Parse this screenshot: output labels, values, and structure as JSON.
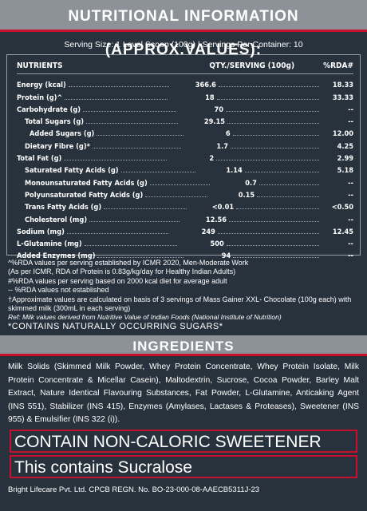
{
  "header": {
    "title": "NUTRITIONAL INFORMATION (APPROX.VALUES):",
    "serving": "Serving Size: 1 Level Scoop (100g)  |  Servings Per Container: 10"
  },
  "table": {
    "columns": [
      "NUTRIENTS",
      "QTY./SERVING (100g)",
      "%RDA#"
    ],
    "rows": [
      {
        "name": "Energy (kcal)",
        "qty": "366.6",
        "rda": "18.33",
        "indent": 0
      },
      {
        "name": "Protein (g)^",
        "qty": "18",
        "rda": "33.33",
        "indent": 0
      },
      {
        "name": "Carbohydrate (g)",
        "qty": "70",
        "rda": "--",
        "indent": 0
      },
      {
        "name": "Total Sugars (g)",
        "qty": "29.15",
        "rda": "--",
        "indent": 1
      },
      {
        "name": "Added Sugars (g)",
        "qty": "6",
        "rda": "12.00",
        "indent": 2
      },
      {
        "name": "Dietary Fibre (g)*",
        "qty": "1.7",
        "rda": "4.25",
        "indent": 1
      },
      {
        "name": "Total Fat (g)",
        "qty": "2",
        "rda": "2.99",
        "indent": 0
      },
      {
        "name": "Saturated Fatty Acids (g)",
        "qty": "1.14",
        "rda": "5.18",
        "indent": 1
      },
      {
        "name": "Monounsaturated Fatty Acids (g)",
        "qty": "0.7",
        "rda": "--",
        "indent": 1
      },
      {
        "name": "Polyunsaturated Fatty Acids (g)",
        "qty": "0.15",
        "rda": "--",
        "indent": 1
      },
      {
        "name": "Trans Fatty Acids (g)",
        "qty": "<0.01",
        "rda": "<0.50",
        "indent": 1
      },
      {
        "name": "Cholesterol (mg)",
        "qty": "12.56",
        "rda": "--",
        "indent": 1
      },
      {
        "name": "Sodium (mg)",
        "qty": "249",
        "rda": "12.45",
        "indent": 0
      },
      {
        "name": "L-Glutamine (mg)",
        "qty": "500",
        "rda": "--",
        "indent": 0
      },
      {
        "name": "Added Enzymes (mg)",
        "qty": "94",
        "rda": "--",
        "indent": 0
      }
    ]
  },
  "footnotes": [
    "^%RDA values per serving established by ICMR 2020, Men-Moderate Work",
    "(As per ICMR, RDA of Protein is 0.83g/kg/day for Healthy Indian Adults)",
    "#%RDA values per serving based on 2000 kcal diet for average adult",
    "-- %RDA values not established",
    "†Approximate values are calculated on basis of 3 servings of Mass Gainer XXL- Chocolate (100g each) with skimmed milk (300mL in each serving)"
  ],
  "reference": "Ref: Milk values derived from Nutritive Value of Indian Foods (National Institute of Nutrition)",
  "sugars_note": "*CONTAINS NATURALLY OCCURRING SUGARS*",
  "ingredients": {
    "title": "INGREDIENTS",
    "text": "Milk Solids (Skimmed Milk Powder, Whey Protein Concentrate, Whey Protein Isolate, Milk Protein Concentrate & Micellar Casein), Maltodextrin, Sucrose, Cocoa Powder, Barley Malt Extract, Nature Identical Flavouring Substances, Fat Powder, L-Glutamine, Anticaking Agent (INS 551), Stabilizer (INS 415), Enzymes (Amylases, Lactases & Proteases), Sweetener (INS 955) & Emulsifier (INS 322 (i))."
  },
  "warnings": [
    "CONTAIN NON-CALORIC SWEETENER",
    "This contains Sucralose"
  ],
  "footer": "Bright Lifecare Pvt. Ltd. CPCB REGN. No. BO-23-000-08-AAECB5311J-23"
}
